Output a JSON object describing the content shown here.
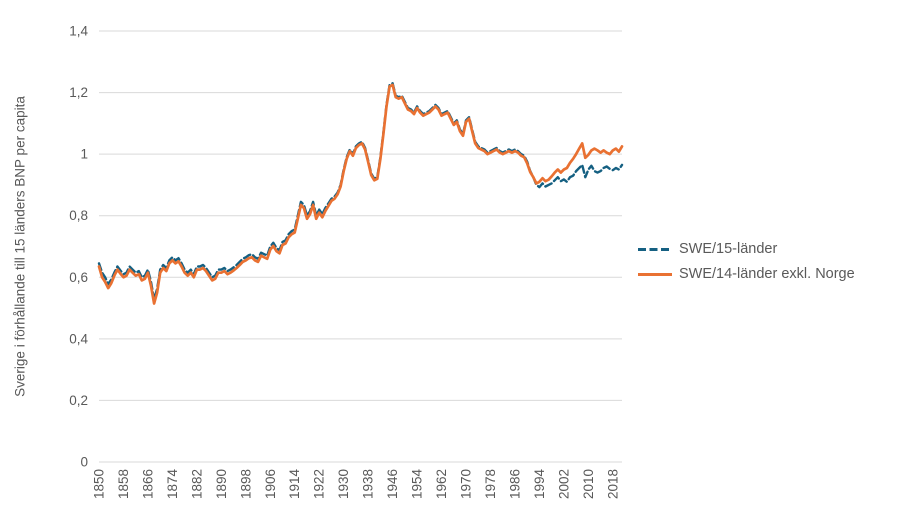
{
  "chart_data": {
    "type": "line",
    "title": "",
    "xlabel": "",
    "ylabel": "Sverige i förhållande till  15 länders BNP per capita",
    "ylim": [
      0,
      1.4
    ],
    "ytick_step": 0.2,
    "ytick_labels": [
      "0",
      "0,2",
      "0,4",
      "0,6",
      "0,8",
      "1",
      "1,2",
      "1,4"
    ],
    "xlim": [
      1850,
      2021
    ],
    "x_start_year": 1850,
    "xtick_labels": [
      "1850",
      "1858",
      "1866",
      "1874",
      "1882",
      "1890",
      "1898",
      "1906",
      "1914",
      "1922",
      "1930",
      "1938",
      "1946",
      "1954",
      "1962",
      "1970",
      "1978",
      "1986",
      "1994",
      "2002",
      "2010",
      "2018"
    ],
    "grid": "horizontal-only",
    "legend_position": "right",
    "background_color": "#FFFFFF",
    "grid_color": "#D9D9D9",
    "text_color": "#595959",
    "series": [
      {
        "name": "SWE/15-länder",
        "color": "#156082",
        "style": "dashed",
        "values": [
          0.645,
          0.615,
          0.6,
          0.578,
          0.592,
          0.615,
          0.635,
          0.622,
          0.61,
          0.615,
          0.635,
          0.625,
          0.615,
          0.62,
          0.6,
          0.605,
          0.625,
          0.585,
          0.528,
          0.562,
          0.625,
          0.64,
          0.63,
          0.655,
          0.665,
          0.655,
          0.662,
          0.645,
          0.625,
          0.615,
          0.625,
          0.61,
          0.635,
          0.635,
          0.64,
          0.63,
          0.615,
          0.6,
          0.605,
          0.625,
          0.625,
          0.63,
          0.62,
          0.625,
          0.632,
          0.64,
          0.65,
          0.66,
          0.665,
          0.672,
          0.675,
          0.665,
          0.66,
          0.68,
          0.675,
          0.67,
          0.7,
          0.712,
          0.695,
          0.688,
          0.715,
          0.72,
          0.74,
          0.75,
          0.755,
          0.8,
          0.845,
          0.835,
          0.8,
          0.815,
          0.845,
          0.8,
          0.82,
          0.805,
          0.825,
          0.84,
          0.855,
          0.862,
          0.875,
          0.9,
          0.95,
          0.99,
          1.015,
          1.0,
          1.025,
          1.035,
          1.04,
          1.02,
          0.98,
          0.937,
          0.92,
          0.926,
          0.99,
          1.07,
          1.16,
          1.225,
          1.23,
          1.19,
          1.185,
          1.19,
          1.17,
          1.15,
          1.145,
          1.135,
          1.155,
          1.14,
          1.13,
          1.135,
          1.14,
          1.15,
          1.16,
          1.15,
          1.13,
          1.135,
          1.14,
          1.12,
          1.1,
          1.11,
          1.08,
          1.065,
          1.11,
          1.12,
          1.08,
          1.04,
          1.025,
          1.02,
          1.015,
          1.005,
          1.01,
          1.015,
          1.02,
          1.01,
          1.005,
          1.01,
          1.015,
          1.01,
          1.015,
          1.01,
          1.0,
          0.995,
          0.975,
          0.945,
          0.925,
          0.9,
          0.893,
          0.905,
          0.895,
          0.9,
          0.905,
          0.915,
          0.925,
          0.912,
          0.918,
          0.91,
          0.925,
          0.93,
          0.945,
          0.955,
          0.965,
          0.925,
          0.95,
          0.962,
          0.945,
          0.94,
          0.945,
          0.955,
          0.96,
          0.952,
          0.948,
          0.955,
          0.95,
          0.965
        ]
      },
      {
        "name": "SWE/14-länder exkl. Norge",
        "color": "#E97132",
        "style": "solid",
        "values": [
          0.635,
          0.6,
          0.585,
          0.565,
          0.58,
          0.605,
          0.625,
          0.612,
          0.6,
          0.605,
          0.625,
          0.615,
          0.605,
          0.61,
          0.59,
          0.595,
          0.615,
          0.572,
          0.515,
          0.55,
          0.615,
          0.63,
          0.62,
          0.645,
          0.655,
          0.645,
          0.652,
          0.635,
          0.615,
          0.605,
          0.615,
          0.6,
          0.625,
          0.625,
          0.63,
          0.62,
          0.605,
          0.59,
          0.595,
          0.615,
          0.615,
          0.62,
          0.61,
          0.615,
          0.622,
          0.63,
          0.64,
          0.65,
          0.655,
          0.662,
          0.665,
          0.655,
          0.65,
          0.67,
          0.665,
          0.66,
          0.69,
          0.702,
          0.685,
          0.678,
          0.705,
          0.71,
          0.73,
          0.74,
          0.745,
          0.79,
          0.835,
          0.825,
          0.79,
          0.805,
          0.835,
          0.79,
          0.81,
          0.795,
          0.815,
          0.832,
          0.848,
          0.855,
          0.87,
          0.895,
          0.945,
          0.985,
          1.01,
          0.995,
          1.02,
          1.03,
          1.035,
          1.015,
          0.975,
          0.932,
          0.915,
          0.92,
          0.985,
          1.065,
          1.155,
          1.22,
          1.225,
          1.185,
          1.18,
          1.185,
          1.165,
          1.145,
          1.14,
          1.13,
          1.15,
          1.135,
          1.125,
          1.13,
          1.135,
          1.145,
          1.155,
          1.145,
          1.125,
          1.13,
          1.135,
          1.115,
          1.095,
          1.105,
          1.075,
          1.06,
          1.105,
          1.115,
          1.075,
          1.035,
          1.02,
          1.015,
          1.01,
          1.0,
          1.005,
          1.01,
          1.015,
          1.005,
          1.0,
          1.005,
          1.01,
          1.005,
          1.01,
          1.005,
          0.995,
          0.99,
          0.97,
          0.942,
          0.925,
          0.905,
          0.91,
          0.922,
          0.912,
          0.917,
          0.928,
          0.94,
          0.95,
          0.94,
          0.95,
          0.955,
          0.972,
          0.985,
          1.0,
          1.018,
          1.035,
          0.988,
          0.998,
          1.012,
          1.018,
          1.012,
          1.005,
          1.012,
          1.005,
          1.0,
          1.012,
          1.018,
          1.008,
          1.025
        ]
      }
    ]
  },
  "legend": {
    "items": [
      {
        "label": "SWE/15-länder"
      },
      {
        "label": "SWE/14-länder exkl. Norge"
      }
    ]
  }
}
